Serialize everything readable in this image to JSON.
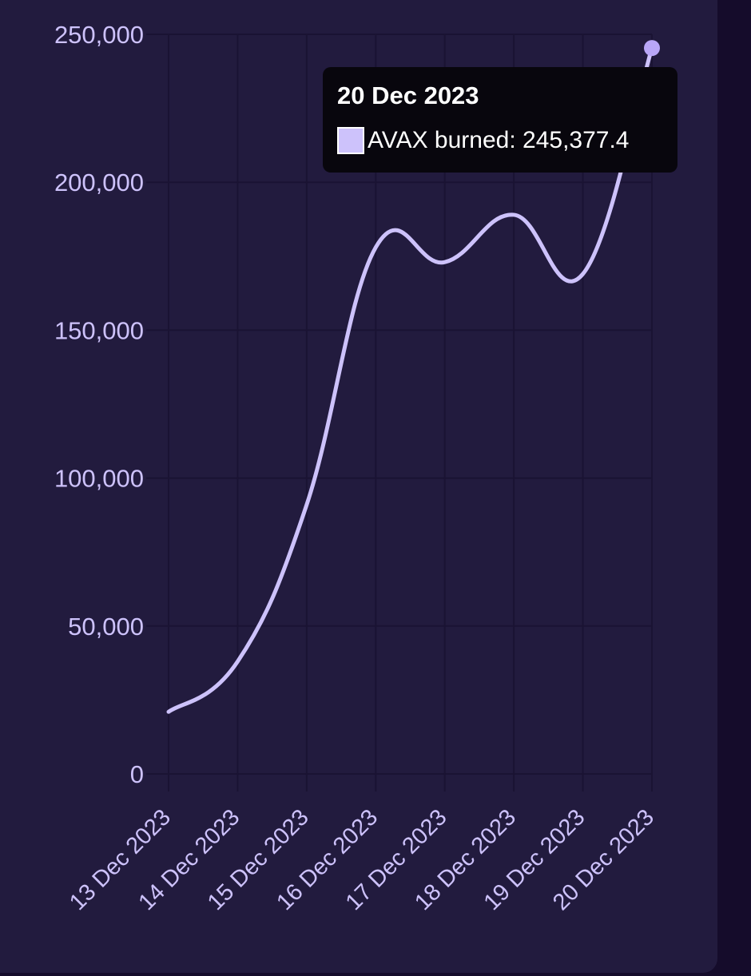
{
  "colors": {
    "background": "#150c2b",
    "card": "#221b3e",
    "grid": "#1a1333",
    "line": "#cdc2fb",
    "axis_text": "#cdc2fb",
    "tooltip_bg": "#08060d"
  },
  "tooltip": {
    "title": "20 Dec 2023",
    "series_label": "AVAX burned: ",
    "value_text": "245,377.4"
  },
  "chart_data": {
    "type": "line",
    "categories": [
      "13 Dec 2023",
      "14 Dec 2023",
      "15 Dec 2023",
      "16 Dec 2023",
      "17 Dec 2023",
      "18 Dec 2023",
      "19 Dec 2023",
      "20 Dec 2023"
    ],
    "series": [
      {
        "name": "AVAX burned",
        "values": [
          21000,
          38000,
          91000,
          178000,
          173000,
          189000,
          169000,
          245377.4
        ]
      }
    ],
    "y_ticks": [
      0,
      50000,
      100000,
      150000,
      200000,
      250000
    ],
    "y_tick_labels": [
      "0",
      "50,000",
      "100,000",
      "150,000",
      "200,000",
      "250,000"
    ],
    "ylim": [
      0,
      250000
    ],
    "grid": true,
    "highlighted_index": 7
  }
}
